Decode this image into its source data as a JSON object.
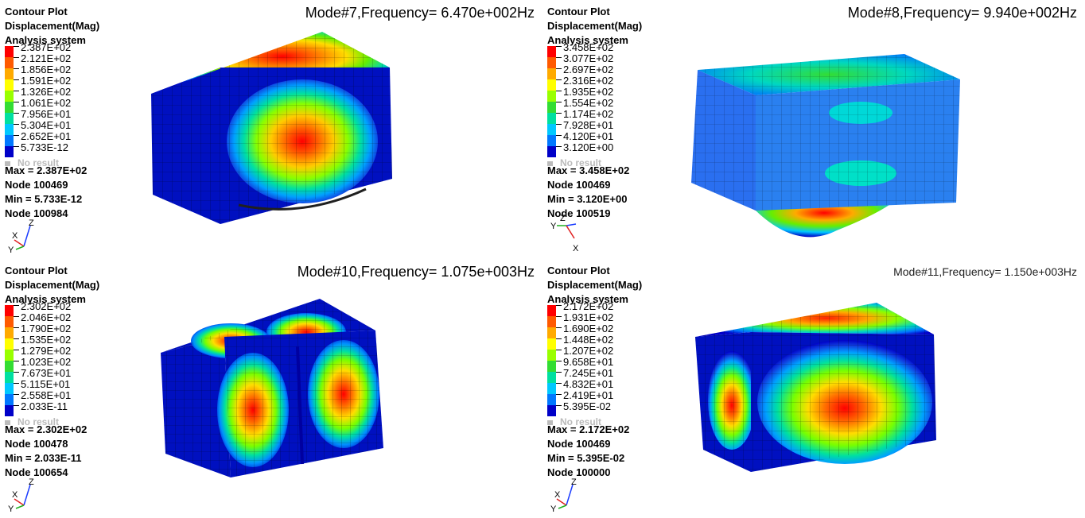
{
  "colors": {
    "band": [
      "#ff0000",
      "#ff5a00",
      "#ffaa00",
      "#ffff00",
      "#99ff00",
      "#33dd33",
      "#00e0a0",
      "#00c8ff",
      "#0078ff",
      "#0000c8"
    ],
    "no_result": "#bbbbbb"
  },
  "panels": [
    {
      "header": [
        "Contour Plot",
        "Displacement(Mag)",
        "Analysis system"
      ],
      "mode_title": "Mode#7,Frequency=  6.470e+002Hz",
      "legend": [
        "2.387E+02",
        "2.121E+02",
        "1.856E+02",
        "1.591E+02",
        "1.326E+02",
        "1.061E+02",
        "7.956E+01",
        "5.304E+01",
        "2.652E+01",
        "5.733E-12"
      ],
      "no_result": "No result",
      "stats": [
        "Max = 2.387E+02",
        "Node 100469",
        "Min = 5.733E-12",
        "Node 100984"
      ],
      "triad": {
        "x_icon": "axis-triad-icon",
        "labels": [
          "Z",
          "X",
          "Y"
        ]
      }
    },
    {
      "header": [
        "Contour Plot",
        "Displacement(Mag)",
        "Analysis system"
      ],
      "mode_title": "Mode#8,Frequency=  9.940e+002Hz",
      "legend": [
        "3.458E+02",
        "3.077E+02",
        "2.697E+02",
        "2.316E+02",
        "1.935E+02",
        "1.554E+02",
        "1.174E+02",
        "7.928E+01",
        "4.120E+01",
        "3.120E+00"
      ],
      "no_result": "No result",
      "stats": [
        "Max = 3.458E+02",
        "Node 100469",
        "Min = 3.120E+00",
        "Node 100519"
      ],
      "triad": {
        "x_icon": "axis-triad-icon",
        "labels": [
          "Z",
          "X",
          "Y"
        ]
      }
    },
    {
      "header": [
        "Contour Plot",
        "Displacement(Mag)",
        "Analysis system"
      ],
      "mode_title": "Mode#10,Frequency=  1.075e+003Hz",
      "legend": [
        "2.302E+02",
        "2.046E+02",
        "1.790E+02",
        "1.535E+02",
        "1.279E+02",
        "1.023E+02",
        "7.673E+01",
        "5.115E+01",
        "2.558E+01",
        "2.033E-11"
      ],
      "no_result": "No result",
      "stats": [
        "Max = 2.302E+02",
        "Node 100478",
        "Min = 2.033E-11",
        "Node 100654"
      ],
      "triad": {
        "x_icon": "axis-triad-icon",
        "labels": [
          "Z",
          "X",
          "Y"
        ]
      }
    },
    {
      "header": [
        "Contour Plot",
        "Displacement(Mag)",
        "Analysis system"
      ],
      "mode_title": "Mode#11,Frequency=  1.150e+003Hz",
      "legend": [
        "2.172E+02",
        "1.931E+02",
        "1.690E+02",
        "1.448E+02",
        "1.207E+02",
        "9.658E+01",
        "7.245E+01",
        "4.832E+01",
        "2.419E+01",
        "5.395E-02"
      ],
      "no_result": "No result",
      "stats": [
        "Max = 2.172E+02",
        "Node 100469",
        "Min = 5.395E-02",
        "Node 100000"
      ],
      "triad": {
        "x_icon": "axis-triad-icon",
        "labels": [
          "Z",
          "X",
          "Y"
        ]
      }
    }
  ]
}
